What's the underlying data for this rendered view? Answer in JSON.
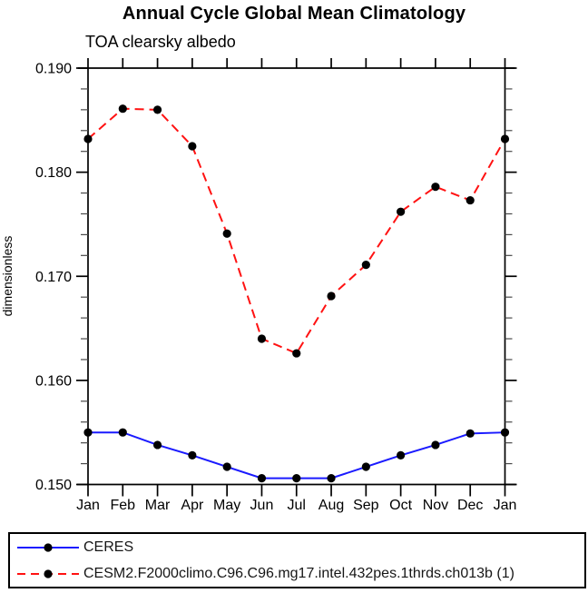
{
  "header": {
    "title": "Annual Cycle Global Mean Climatology",
    "subtitle": "TOA clearsky albedo"
  },
  "chart_data": {
    "type": "line",
    "title": "Annual Cycle Global Mean Climatology",
    "subtitle": "TOA clearsky albedo",
    "ylabel": "dimensionless",
    "categories": [
      "Jan",
      "Feb",
      "Mar",
      "Apr",
      "May",
      "Jun",
      "Jul",
      "Aug",
      "Sep",
      "Oct",
      "Nov",
      "Dec",
      "Jan"
    ],
    "ylim": [
      0.15,
      0.19
    ],
    "ytick_major": 0.01,
    "ytick_minor": 0.002,
    "grid": false,
    "legend_position": "bottom",
    "marker": {
      "shape": "circle",
      "color": "#000000"
    },
    "series": [
      {
        "name": "CERES",
        "color": "#1a1aff",
        "line_style": "solid",
        "values": [
          0.155,
          0.155,
          0.1538,
          0.1528,
          0.1517,
          0.1506,
          0.1506,
          0.1506,
          0.1517,
          0.1528,
          0.1538,
          0.1549,
          0.155
        ]
      },
      {
        "name": "CESM2.F2000climo.C96.C96.mg17.intel.432pes.1thrds.ch013b (1)",
        "color": "#ff1212",
        "line_style": "dashed",
        "values": [
          0.1832,
          0.1861,
          0.186,
          0.1825,
          0.1741,
          0.164,
          0.1626,
          0.1681,
          0.1711,
          0.1762,
          0.1786,
          0.1773,
          0.1832
        ]
      }
    ]
  }
}
